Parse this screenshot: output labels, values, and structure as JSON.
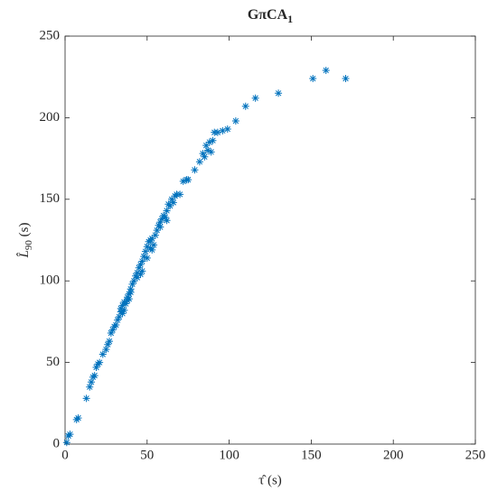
{
  "chart_data": {
    "type": "scatter",
    "title": {
      "main": "GπCA",
      "sub": "1"
    },
    "xlabel": "τ̂ (s)",
    "ylabel": {
      "main": "L̂",
      "sub": "90",
      "rest": " (s)"
    },
    "color": "#0072bd",
    "marker": "asterisk",
    "xlim": [
      0,
      250
    ],
    "ylim": [
      0,
      250
    ],
    "xticks": [
      0,
      50,
      100,
      150,
      200,
      250
    ],
    "yticks": [
      0,
      50,
      100,
      150,
      200,
      250
    ],
    "box": true,
    "x": [
      1,
      2,
      3,
      7,
      8,
      13,
      15,
      16,
      17,
      18,
      19,
      20,
      21,
      23,
      25,
      26,
      27,
      28,
      29,
      30,
      31,
      32,
      33,
      34,
      34,
      35,
      36,
      37,
      38,
      38,
      39,
      40,
      41,
      42,
      43,
      44,
      45,
      46,
      47,
      48,
      49,
      50,
      51,
      52,
      53,
      54,
      55,
      56,
      57,
      58,
      59,
      60,
      61,
      62,
      63,
      64,
      65,
      66,
      67,
      68,
      70,
      72,
      74,
      75,
      79,
      82,
      84,
      85,
      86,
      87,
      88,
      89,
      90,
      91,
      93,
      96,
      99,
      104,
      110,
      116,
      130,
      151,
      159,
      171,
      36,
      40,
      44,
      47,
      50,
      53,
      58,
      62,
      35,
      39,
      46,
      52
    ],
    "y": [
      1,
      5,
      6,
      15,
      16,
      28,
      35,
      38,
      41,
      42,
      47,
      49,
      50,
      55,
      58,
      61,
      63,
      68,
      70,
      72,
      73,
      76,
      78,
      81,
      83,
      85,
      87,
      86,
      88,
      90,
      92,
      93,
      98,
      100,
      103,
      105,
      108,
      110,
      112,
      115,
      118,
      121,
      124,
      125,
      126,
      122,
      128,
      131,
      134,
      136,
      138,
      140,
      139,
      143,
      147,
      146,
      150,
      148,
      152,
      153,
      153,
      161,
      162,
      162,
      168,
      173,
      178,
      176,
      183,
      180,
      185,
      179,
      186,
      191,
      191,
      192,
      193,
      198,
      207,
      212,
      215,
      224,
      229,
      224,
      82,
      95,
      102,
      106,
      114,
      119,
      133,
      137,
      80,
      89,
      104,
      120
    ]
  }
}
